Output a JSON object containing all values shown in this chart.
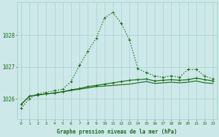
{
  "xlabel": "Graphe pression niveau de la mer (hPa)",
  "hours": [
    0,
    1,
    2,
    3,
    4,
    5,
    6,
    7,
    8,
    9,
    10,
    11,
    12,
    13,
    14,
    15,
    16,
    17,
    18,
    19,
    20,
    21,
    22,
    23
  ],
  "line1": [
    1025.7,
    1026.0,
    1026.15,
    1026.2,
    1026.25,
    1026.3,
    1026.55,
    1027.05,
    1027.5,
    1027.9,
    1028.55,
    1028.72,
    1028.38,
    1027.85,
    1026.95,
    1026.82,
    1026.72,
    1026.68,
    1026.72,
    1026.68,
    1026.92,
    1026.92,
    1026.72,
    1026.62
  ],
  "line2": [
    1025.82,
    1026.08,
    1026.12,
    1026.15,
    1026.18,
    1026.22,
    1026.28,
    1026.32,
    1026.38,
    1026.42,
    1026.46,
    1026.5,
    1026.54,
    1026.58,
    1026.6,
    1026.62,
    1026.56,
    1026.58,
    1026.6,
    1026.58,
    1026.6,
    1026.65,
    1026.6,
    1026.56
  ],
  "line3": [
    1025.82,
    1026.08,
    1026.12,
    1026.15,
    1026.18,
    1026.22,
    1026.26,
    1026.3,
    1026.34,
    1026.38,
    1026.4,
    1026.42,
    1026.44,
    1026.46,
    1026.5,
    1026.54,
    1026.48,
    1026.5,
    1026.52,
    1026.5,
    1026.52,
    1026.56,
    1026.5,
    1026.48
  ],
  "line_color": "#1a6e1a",
  "bg_color": "#cde8e8",
  "grid_color": "#a0c8c8",
  "text_color": "#1a6e1a",
  "label_color": "#1a6e1a",
  "ylim_min": 1025.35,
  "ylim_max": 1029.05,
  "yticks": [
    1026,
    1027,
    1028
  ],
  "marker": "+",
  "markersize": 3.5,
  "linewidth1": 1.0,
  "linewidth2": 0.9,
  "linewidth3": 0.9
}
